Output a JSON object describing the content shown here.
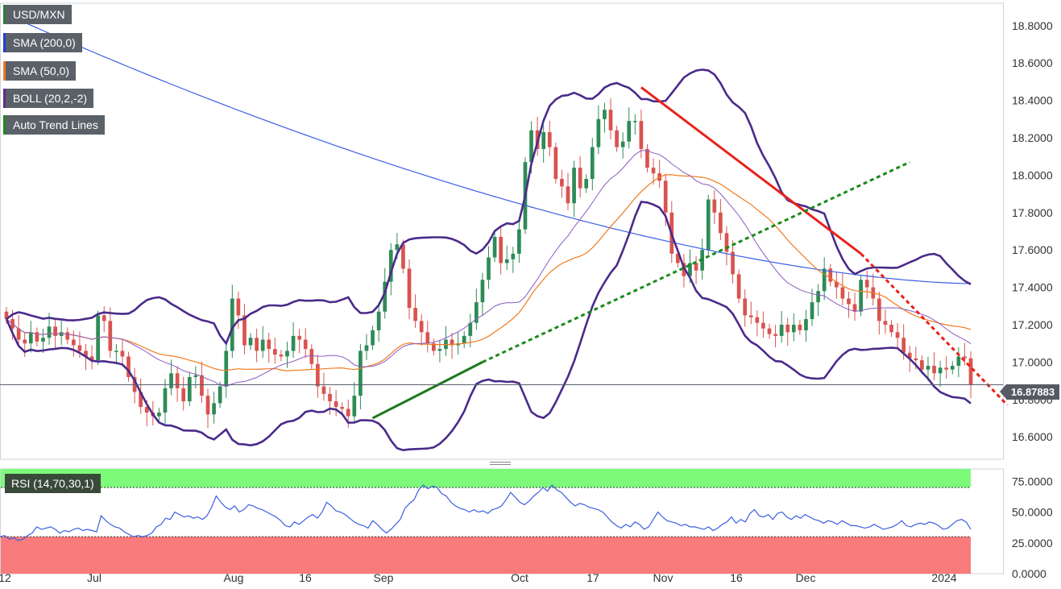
{
  "legend": {
    "items": [
      {
        "label": "USD/MXN",
        "color": "#2e7d32"
      },
      {
        "label": "SMA (200,0)",
        "color": "#1f3fd6"
      },
      {
        "label": "SMA (50,0)",
        "color": "#f07a20"
      },
      {
        "label": "BOLL (20,2,-2)",
        "color": "#5b2d8e"
      },
      {
        "label": "Auto Trend Lines",
        "color": "#1a8a1a"
      }
    ]
  },
  "last_price": "16.87883",
  "rsi_label": "RSI (14,70,30,1)",
  "chart_data": [
    {
      "type": "candlestick",
      "symbol": "USD/MXN",
      "ylim": [
        16.48,
        18.92
      ],
      "y_ticks": [
        "18.8000",
        "18.6000",
        "18.4000",
        "18.2000",
        "18.0000",
        "17.8000",
        "17.6000",
        "17.4000",
        "17.2000",
        "17.0000",
        "16.8000",
        "16.6000"
      ],
      "x_ticks": [
        "12",
        "Jul",
        "Aug",
        "16",
        "Sep",
        "Oct",
        "17",
        "Nov",
        "16",
        "Dec",
        "2024"
      ],
      "close": [
        17.23,
        17.18,
        17.12,
        17.1,
        17.16,
        17.11,
        17.13,
        17.19,
        17.14,
        17.16,
        17.12,
        17.09,
        17.06,
        17.03,
        17.01,
        17.25,
        17.22,
        17.06,
        17.06,
        17.03,
        16.92,
        16.84,
        16.76,
        16.73,
        16.71,
        16.73,
        16.86,
        16.94,
        16.86,
        16.79,
        16.92,
        16.93,
        16.82,
        16.72,
        16.78,
        16.87,
        17.06,
        17.34,
        17.25,
        17.09,
        17.13,
        17.06,
        17.12,
        17.07,
        17.04,
        17.03,
        17.06,
        17.14,
        17.12,
        17.07,
        16.99,
        16.87,
        16.83,
        16.79,
        16.76,
        16.75,
        16.71,
        16.82,
        17.06,
        17.09,
        17.17,
        17.27,
        17.43,
        17.6,
        17.63,
        17.5,
        17.29,
        17.22,
        17.16,
        17.1,
        17.06,
        17.07,
        17.12,
        17.09,
        17.1,
        17.14,
        17.21,
        17.32,
        17.44,
        17.56,
        17.67,
        17.53,
        17.55,
        17.58,
        17.71,
        18.07,
        18.24,
        18.14,
        18.23,
        18.15,
        17.98,
        17.94,
        17.85,
        18.04,
        17.93,
        17.98,
        18.15,
        18.3,
        18.35,
        18.24,
        18.15,
        18.18,
        18.29,
        18.29,
        18.14,
        18.04,
        18.01,
        17.97,
        17.8,
        17.58,
        17.53,
        17.46,
        17.53,
        17.49,
        17.6,
        17.87,
        17.8,
        17.69,
        17.59,
        17.47,
        17.34,
        17.25,
        17.24,
        17.21,
        17.18,
        17.15,
        17.14,
        17.2,
        17.16,
        17.2,
        17.17,
        17.23,
        17.32,
        17.38,
        17.5,
        17.43,
        17.4,
        17.34,
        17.31,
        17.27,
        17.44,
        17.4,
        17.34,
        17.22,
        17.2,
        17.16,
        17.13,
        17.05,
        17.02,
        17.01,
        16.96,
        16.98,
        16.94,
        16.97,
        16.96,
        16.98,
        17.03,
        17.02,
        16.88
      ],
      "sma200": [
        18.86,
        17.42
      ],
      "sma50_end": 17.28,
      "boll_mid_end": 17.08,
      "boll_upper_end": 17.35,
      "boll_lower_end": 16.81,
      "trend_lines": [
        {
          "style": "solid",
          "color": "red",
          "from": 18.47,
          "to": 17.58
        },
        {
          "style": "dotted",
          "color": "red",
          "from": 17.58,
          "to": 16.77
        },
        {
          "style": "solid",
          "color": "green",
          "from": 16.7,
          "to": 17.0
        },
        {
          "style": "dotted",
          "color": "green",
          "from": 17.0,
          "to": 18.07
        }
      ],
      "last_value": 16.87883
    },
    {
      "type": "line",
      "name": "RSI (14,70,30,1)",
      "ylim": [
        0,
        85
      ],
      "y_ticks": [
        "75.0000",
        "50.0000",
        "25.0000",
        "0.0000"
      ],
      "bands": {
        "upper": 70,
        "lower": 30
      },
      "values": [
        30,
        31,
        28,
        29,
        27,
        28,
        31,
        33,
        38,
        36,
        37,
        38,
        36,
        33,
        35,
        34,
        36,
        37,
        35,
        36,
        35,
        34,
        47,
        43,
        40,
        38,
        37,
        34,
        32,
        30,
        31,
        30,
        31,
        33,
        38,
        40,
        45,
        44,
        50,
        48,
        46,
        47,
        45,
        46,
        44,
        47,
        54,
        63,
        58,
        54,
        52,
        55,
        50,
        52,
        56,
        55,
        53,
        52,
        50,
        48,
        46,
        43,
        39,
        38,
        42,
        40,
        43,
        46,
        48,
        45,
        50,
        58,
        55,
        51,
        50,
        48,
        45,
        42,
        40,
        39,
        37,
        43,
        40,
        36,
        33,
        36,
        40,
        44,
        53,
        57,
        60,
        68,
        72,
        69,
        71,
        70,
        65,
        63,
        58,
        55,
        53,
        52,
        50,
        52,
        50,
        51,
        49,
        52,
        53,
        55,
        60,
        66,
        62,
        58,
        56,
        59,
        63,
        66,
        70,
        67,
        72,
        68,
        66,
        62,
        58,
        55,
        57,
        56,
        54,
        53,
        52,
        50,
        46,
        42,
        39,
        37,
        40,
        38,
        42,
        40,
        36,
        38,
        44,
        50,
        46,
        43,
        42,
        41,
        39,
        40,
        38,
        38,
        37,
        36,
        38,
        35,
        37,
        40,
        42,
        46,
        41,
        44,
        42,
        49,
        52,
        47,
        46,
        48,
        44,
        49,
        50,
        46,
        44,
        47,
        45,
        48,
        46,
        44,
        43,
        41,
        43,
        42,
        40,
        43,
        41,
        39,
        39,
        38,
        37,
        38,
        40,
        38,
        36,
        37,
        38,
        40,
        43,
        39,
        38,
        40,
        41,
        40,
        42,
        41,
        39,
        36,
        37,
        40,
        43,
        44,
        42,
        36
      ]
    }
  ]
}
